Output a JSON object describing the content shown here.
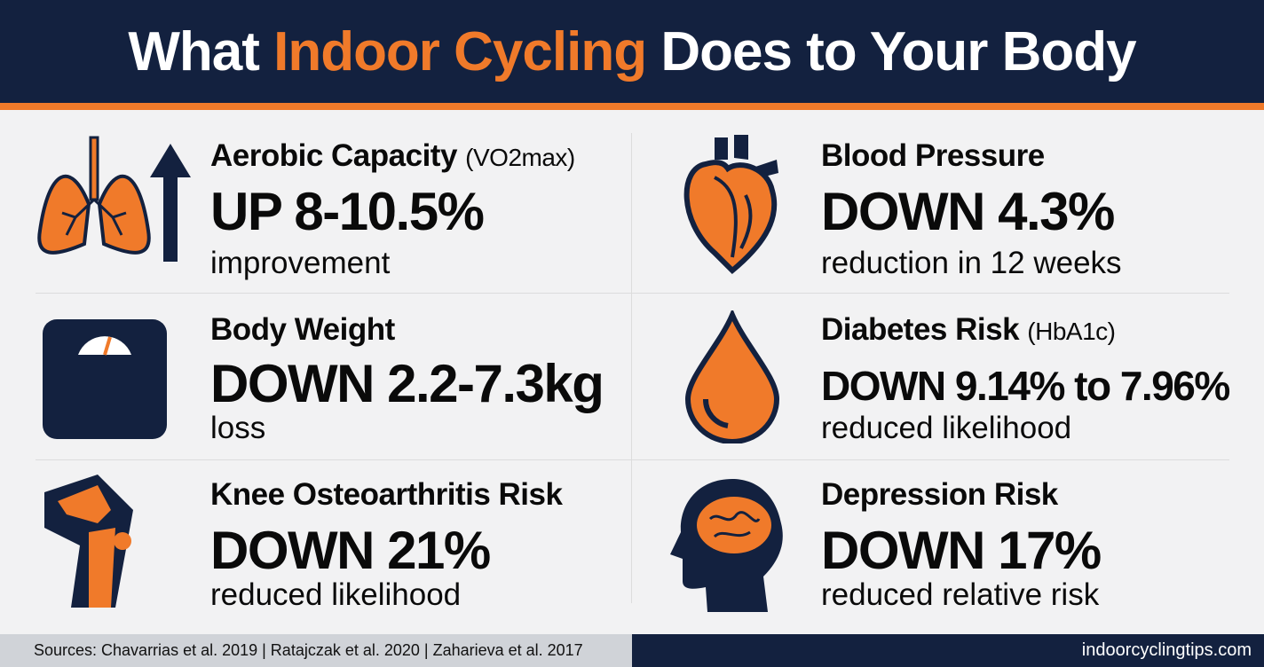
{
  "title": {
    "part1": "What ",
    "highlight": "Indoor Cycling",
    "part2": " Does to Your Body"
  },
  "colors": {
    "navy": "#13213f",
    "orange": "#f07a2a",
    "background": "#f2f2f3"
  },
  "stats": [
    {
      "icon": "lungs-with-up-arrow-icon",
      "label": "Aerobic Capacity",
      "label_note": "(VO2max)",
      "value": "UP 8-10.5%",
      "sub": "improvement"
    },
    {
      "icon": "heart-icon",
      "label": "Blood Pressure",
      "label_note": "",
      "value": "DOWN 4.3%",
      "sub": "reduction in 12 weeks"
    },
    {
      "icon": "scale-icon",
      "label": "Body Weight",
      "label_note": "",
      "value": "DOWN 2.2-7.3kg",
      "sub": "loss"
    },
    {
      "icon": "blood-drop-icon",
      "label": "Diabetes Risk",
      "label_note": "(HbA1c)",
      "value": "DOWN 9.14% to 7.96%",
      "sub": "reduced likelihood"
    },
    {
      "icon": "knee-joint-icon",
      "label": "Knee Osteoarthritis Risk",
      "label_note": "",
      "value": "DOWN 21%",
      "sub": "reduced likelihood"
    },
    {
      "icon": "head-brain-icon",
      "label": "Depression Risk",
      "label_note": "",
      "value": "DOWN 17%",
      "sub": "reduced relative risk"
    }
  ],
  "footer": {
    "sources": "Sources: Chavarrias et al. 2019 | Ratajczak et al. 2020 | Zaharieva et al. 2017",
    "site": "indoorcyclingtips.com"
  }
}
